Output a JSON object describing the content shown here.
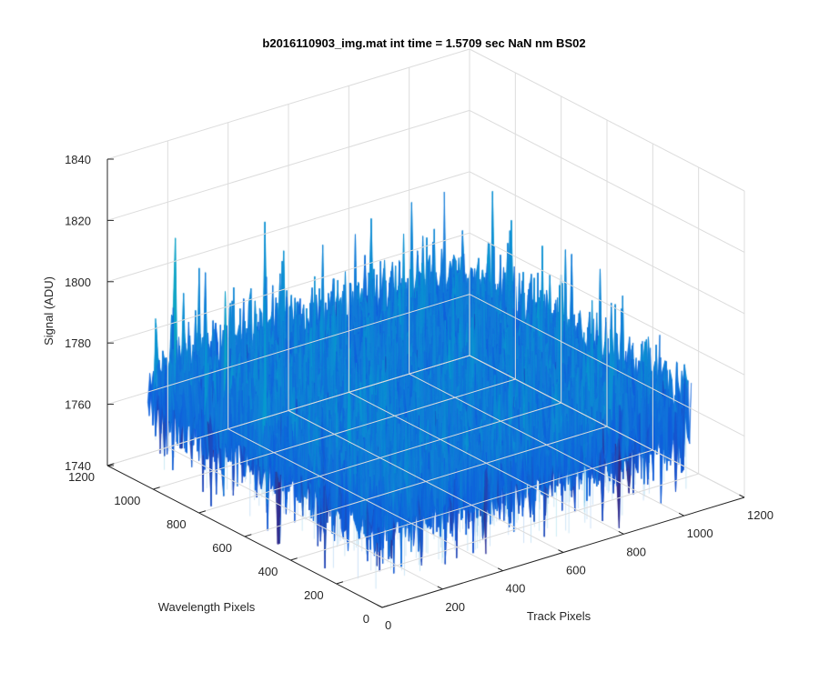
{
  "chart_data": {
    "type": "surface",
    "title": "b2016110903_img.mat int time = 1.5709 sec  NaN nm BS02",
    "xlabel": "Track Pixels",
    "ylabel": "Wavelength Pixels",
    "zlabel": "Signal (ADU)",
    "xlim": [
      0,
      1200
    ],
    "ylim": [
      0,
      1200
    ],
    "zlim": [
      1740,
      1840
    ],
    "xticks": [
      0,
      200,
      400,
      600,
      800,
      1000,
      1200
    ],
    "yticks": [
      0,
      200,
      400,
      600,
      800,
      1000,
      1200
    ],
    "zticks": [
      1740,
      1760,
      1780,
      1800,
      1820,
      1840
    ],
    "xtick_labels": [
      "0",
      "200",
      "400",
      "600",
      "800",
      "1000",
      "1200"
    ],
    "ytick_labels": [
      "0",
      "200",
      "400",
      "600",
      "800",
      "1000",
      "1200"
    ],
    "ztick_labels": [
      "1740",
      "1760",
      "1780",
      "1800",
      "1820",
      "1840"
    ],
    "x_range": [
      0,
      1024
    ],
    "y_range": [
      0,
      1024
    ],
    "z_mean": 1772,
    "z_noise_std": 8,
    "z_peak_max": 1832,
    "colormap": "parula",
    "grid": true
  }
}
